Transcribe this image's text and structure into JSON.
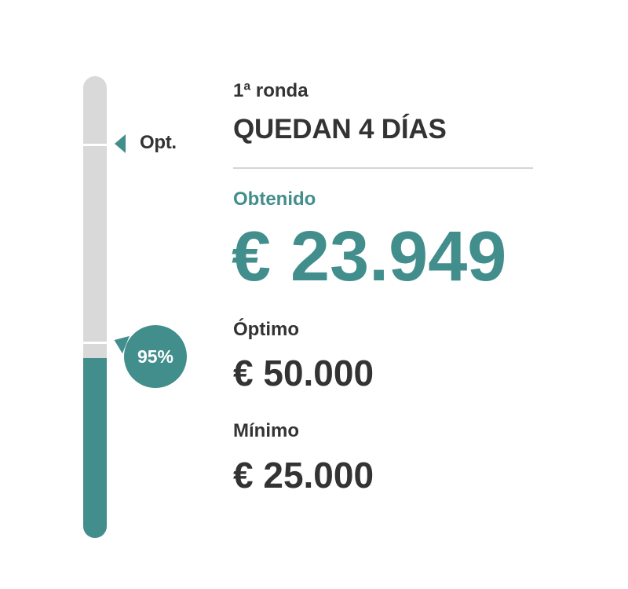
{
  "progress": {
    "percent_label": "95%",
    "fill_fraction": 0.39,
    "optimal_marker_label": "Opt.",
    "colors": {
      "fill": "#428e8d",
      "track": "#d9d9d9"
    }
  },
  "campaign": {
    "round_label": "1ª ronda",
    "days_left": "QUEDAN 4 DÍAS"
  },
  "obtained": {
    "label": "Obtenido",
    "amount": "€ 23.949"
  },
  "optimal": {
    "label": "Óptimo",
    "amount": "€ 50.000"
  },
  "minimum": {
    "label": "Mínimo",
    "amount": "€ 25.000"
  }
}
